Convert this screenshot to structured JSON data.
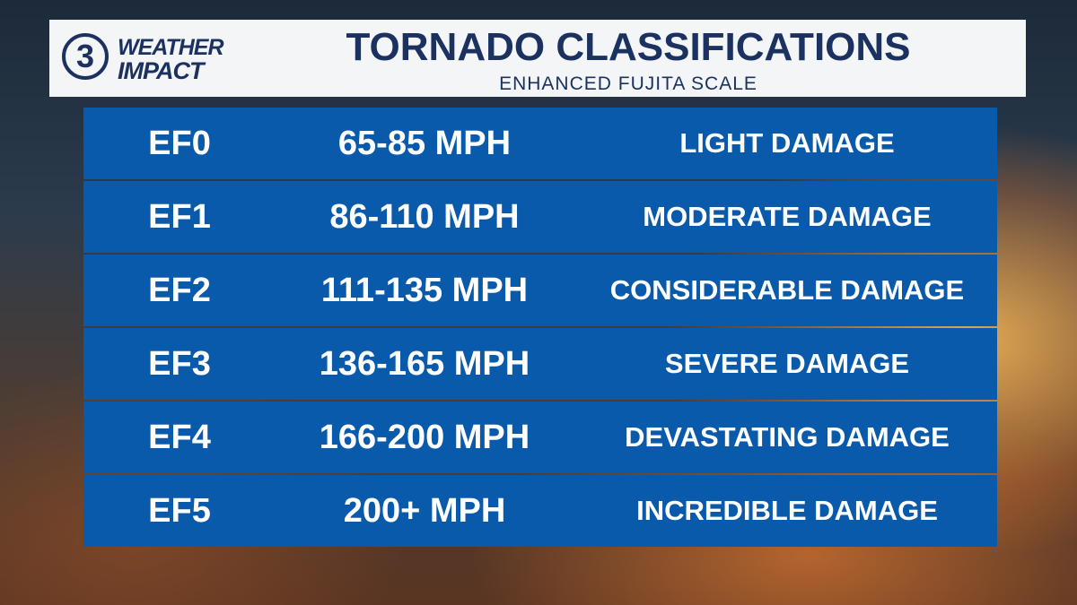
{
  "logo": {
    "number": "3",
    "line1": "WEATHER",
    "line2": "IMPACT"
  },
  "header": {
    "title": "TORNADO CLASSIFICATIONS",
    "subtitle": "ENHANCED FUJITA SCALE"
  },
  "table": {
    "rows": [
      [
        "EF0",
        "65-85 MPH",
        "LIGHT DAMAGE"
      ],
      [
        "EF1",
        "86-110 MPH",
        "MODERATE DAMAGE"
      ],
      [
        "EF2",
        "111-135 MPH",
        "CONSIDERABLE DAMAGE"
      ],
      [
        "EF3",
        "136-165 MPH",
        "SEVERE DAMAGE"
      ],
      [
        "EF4",
        "166-200 MPH",
        "DEVASTATING DAMAGE"
      ],
      [
        "EF5",
        "200+ MPH",
        "INCREDIBLE DAMAGE"
      ]
    ]
  }
}
